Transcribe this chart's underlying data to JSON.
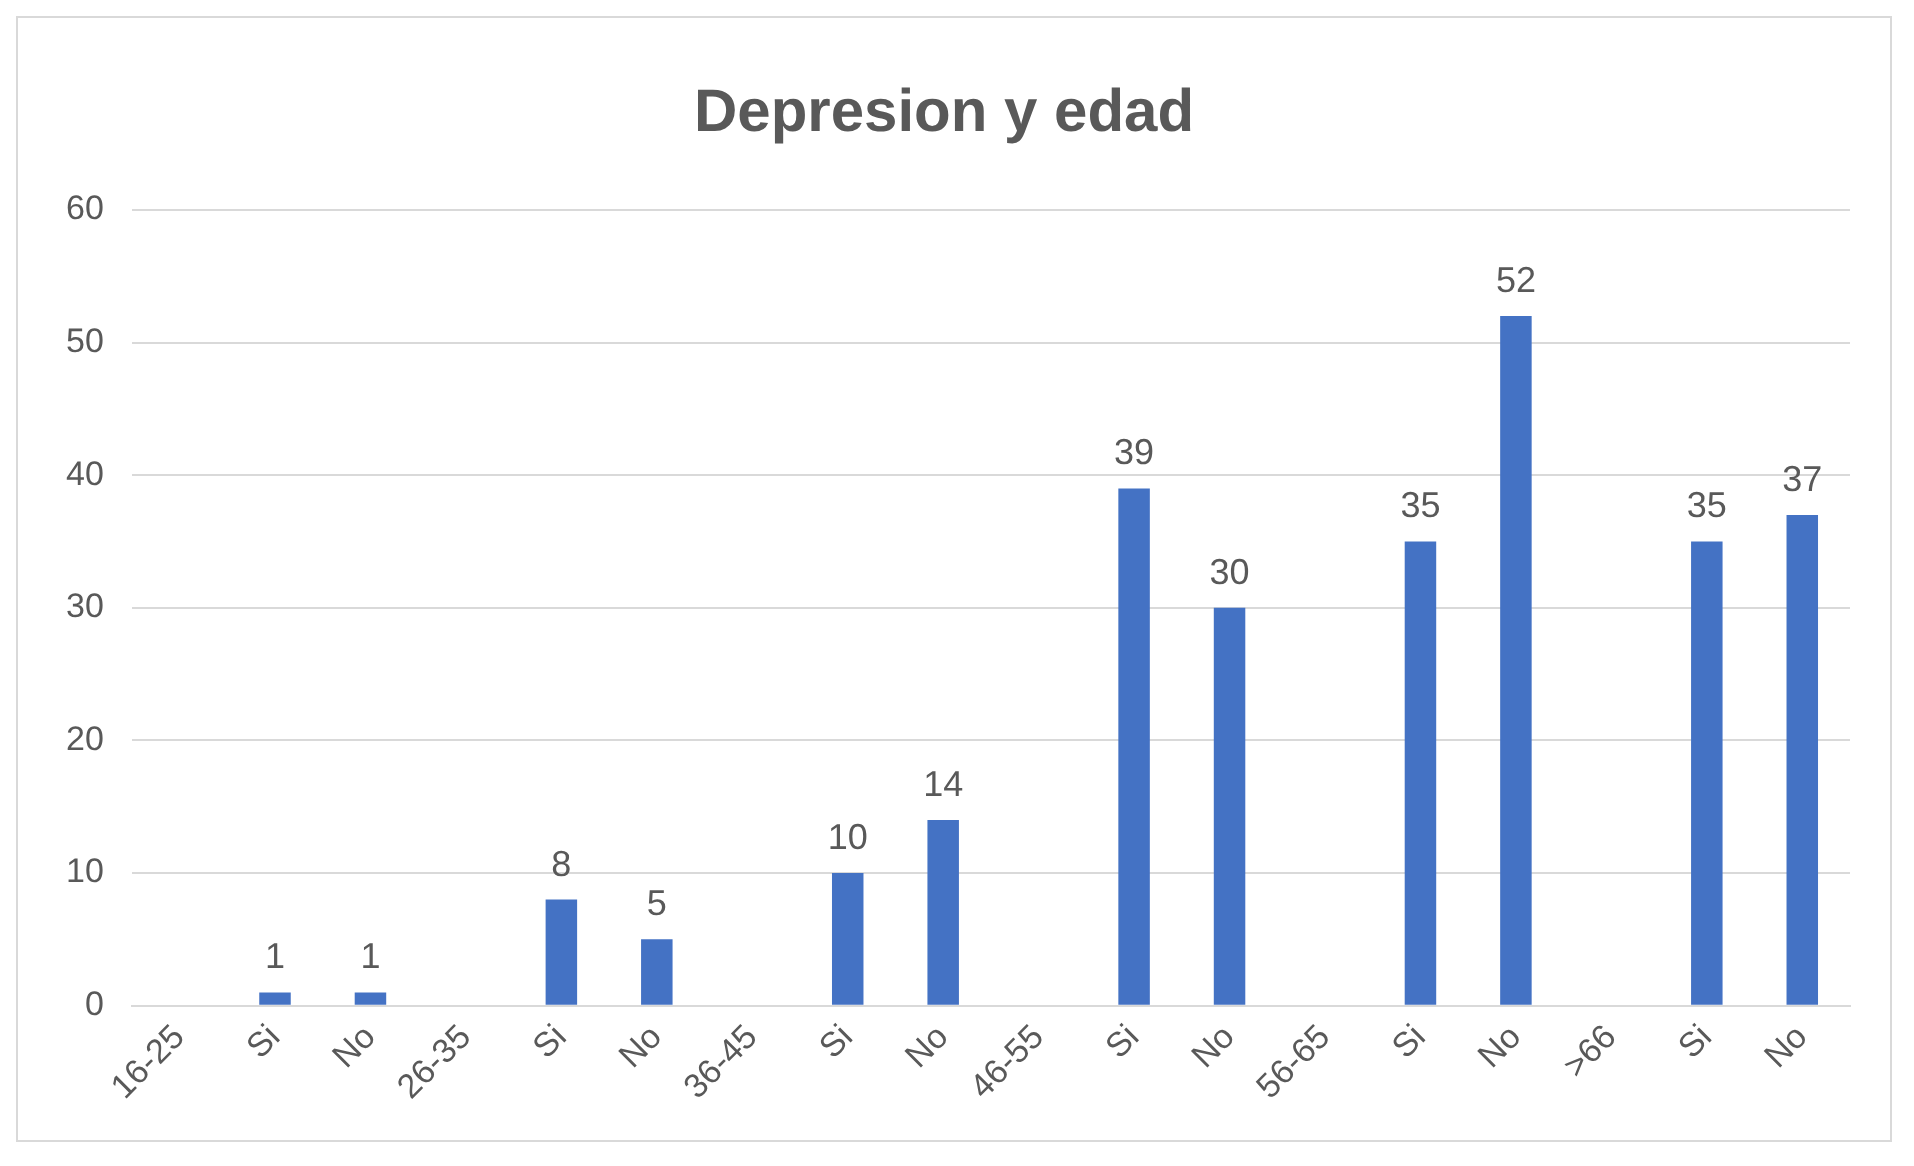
{
  "chart_data": {
    "type": "bar",
    "title": "Depresion y edad",
    "categories": [
      "16-25",
      "Si",
      "No",
      "26-35",
      "Si",
      "No",
      "36-45",
      "Si",
      "No",
      "46-55",
      "Si",
      "No",
      "56-65",
      "Si",
      "No",
      ">66",
      "Si",
      "No"
    ],
    "values": [
      null,
      1,
      1,
      null,
      8,
      5,
      null,
      10,
      14,
      null,
      39,
      30,
      null,
      35,
      52,
      null,
      35,
      37
    ],
    "color": "#4472c4",
    "ylim": [
      0,
      60
    ],
    "yticks": [
      0,
      10,
      20,
      30,
      40,
      50,
      60
    ],
    "grid": "y",
    "data_labels": true,
    "legend": false
  }
}
